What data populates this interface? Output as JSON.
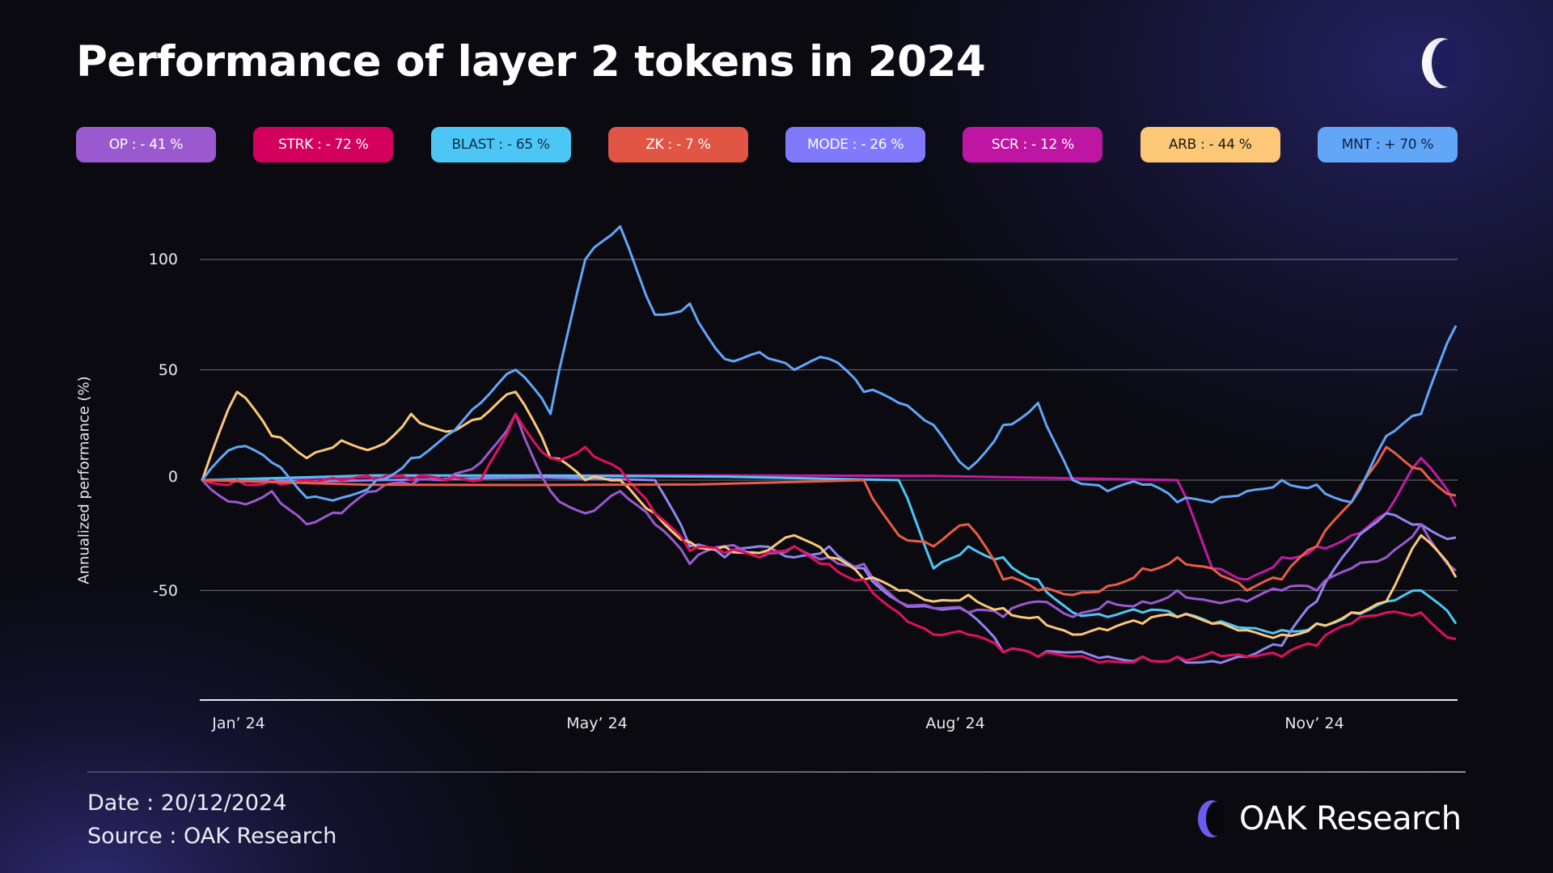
{
  "header": {
    "title": "Performance of layer 2 tokens in 2024",
    "logo_icon": "oak-ring-logo-icon"
  },
  "legend": [
    {
      "label": "OP : - 41 %",
      "token": "OP",
      "value": -41,
      "bg": "#9b59d0",
      "text": "#ffffff",
      "line": "#9b59d0"
    },
    {
      "label": "STRK : - 72 %",
      "token": "STRK",
      "value": -72,
      "bg": "#d4005e",
      "text": "#ffffff",
      "line": "#e0105f"
    },
    {
      "label": "BLAST : - 65 %",
      "token": "BLAST",
      "value": -65,
      "bg": "#4cc7f5",
      "text": "#0f2a40",
      "line": "#4cc7f5"
    },
    {
      "label": "ZK : - 7 %",
      "token": "ZK",
      "value": -7,
      "bg": "#e05544",
      "text": "#ffffff",
      "line": "#ea5c45"
    },
    {
      "label": "MODE : - 26 %",
      "token": "MODE",
      "value": -26,
      "bg": "#8179fb",
      "text": "#ffffff",
      "line": "#8f86f0"
    },
    {
      "label": "SCR : - 12 %",
      "token": "SCR",
      "value": -12,
      "bg": "#bf15a3",
      "text": "#ffffff",
      "line": "#c21aa6"
    },
    {
      "label": "ARB : - 44 %",
      "token": "ARB",
      "value": -44,
      "bg": "#fcc878",
      "text": "#1e1a10",
      "line": "#fcc878"
    },
    {
      "label": "MNT : + 70 %",
      "token": "MNT",
      "value": 70,
      "bg": "#62a6f8",
      "text": "#0f2040",
      "line": "#62a6f8"
    }
  ],
  "chart_data": {
    "type": "line",
    "title": "Performance of layer 2 tokens in 2024",
    "xlabel": "",
    "ylabel": "Annualized performance (%)",
    "ylim": [
      -100,
      125
    ],
    "yticks": [
      100,
      50,
      0,
      -50
    ],
    "xticks": [
      "Jan' 24",
      "May' 24",
      "Aug' 24",
      "Nov' 24"
    ],
    "grid": true,
    "legend_position": "top",
    "x": [
      "Jan 1",
      "Jan 11",
      "Jan 21",
      "Jan 31",
      "Feb 10",
      "Feb 20",
      "Mar 1",
      "Mar 11",
      "Mar 21",
      "Mar 31",
      "Apr 10",
      "Apr 20",
      "Apr 30",
      "May 10",
      "May 20",
      "May 30",
      "Jun 9",
      "Jun 19",
      "Jun 29",
      "Jul 9",
      "Jul 19",
      "Jul 29",
      "Aug 8",
      "Aug 18",
      "Aug 28",
      "Sep 7",
      "Sep 17",
      "Sep 27",
      "Oct 7",
      "Oct 17",
      "Oct 27",
      "Nov 6",
      "Nov 16",
      "Nov 26",
      "Dec 6",
      "Dec 16",
      "Dec 20"
    ],
    "series": [
      {
        "name": "MNT",
        "values": [
          0,
          15,
          8,
          -8,
          -8,
          0,
          10,
          20,
          35,
          50,
          30,
          100,
          115,
          75,
          80,
          55,
          58,
          50,
          55,
          40,
          35,
          25,
          5,
          25,
          35,
          0,
          -5,
          -2,
          -10,
          -10,
          -5,
          0,
          -2,
          -10,
          20,
          30,
          70
        ]
      },
      {
        "name": "ARB",
        "values": [
          0,
          40,
          20,
          10,
          18,
          15,
          30,
          22,
          28,
          40,
          10,
          0,
          0,
          -15,
          -28,
          -30,
          -33,
          -25,
          -35,
          -45,
          -50,
          -55,
          -52,
          -58,
          -62,
          -70,
          -68,
          -65,
          -62,
          -65,
          -68,
          -70,
          -65,
          -60,
          -55,
          -25,
          -44
        ]
      },
      {
        "name": "OP",
        "values": [
          0,
          -10,
          -5,
          -20,
          -15,
          -5,
          -2,
          0,
          8,
          30,
          -5,
          -15,
          -5,
          -20,
          -38,
          -30,
          -35,
          -30,
          -35,
          -38,
          -55,
          -58,
          -60,
          -62,
          -55,
          -62,
          -55,
          -55,
          -50,
          -55,
          -55,
          -50,
          -50,
          -40,
          -35,
          -20,
          -41
        ]
      },
      {
        "name": "STRK",
        "values": [
          0,
          0,
          0,
          0,
          0,
          0,
          0,
          0,
          0,
          30,
          10,
          15,
          5,
          -15,
          -32,
          -33,
          -35,
          -30,
          -38,
          -45,
          -60,
          -70,
          -70,
          -78,
          -80,
          -80,
          -82,
          -80,
          -80,
          -78,
          -80,
          -80,
          -75,
          -65,
          -60,
          -60,
          -72
        ]
      },
      {
        "name": "BLAST",
        "values": [
          null,
          null,
          null,
          null,
          null,
          null,
          null,
          null,
          null,
          null,
          null,
          null,
          null,
          null,
          null,
          null,
          null,
          null,
          null,
          null,
          0,
          -40,
          -30,
          -35,
          -45,
          -60,
          -62,
          -60,
          -62,
          -65,
          -67,
          -68,
          -65,
          -60,
          -55,
          -50,
          -65
        ]
      },
      {
        "name": "ZK",
        "values": [
          null,
          null,
          null,
          null,
          null,
          null,
          null,
          null,
          null,
          null,
          null,
          null,
          null,
          null,
          null,
          null,
          null,
          null,
          null,
          0,
          -25,
          -30,
          -20,
          -45,
          -50,
          -52,
          -48,
          -40,
          -35,
          -40,
          -50,
          -45,
          -30,
          -10,
          15,
          5,
          -7
        ]
      },
      {
        "name": "MODE",
        "values": [
          null,
          null,
          null,
          null,
          null,
          null,
          null,
          null,
          null,
          null,
          null,
          null,
          null,
          0,
          -30,
          -35,
          -30,
          -35,
          -30,
          -40,
          -55,
          -58,
          -60,
          -78,
          -80,
          -78,
          -80,
          -80,
          -80,
          -82,
          -80,
          -75,
          -55,
          -30,
          -15,
          -20,
          -26
        ]
      },
      {
        "name": "SCR",
        "values": [
          null,
          null,
          null,
          null,
          null,
          null,
          null,
          null,
          null,
          null,
          null,
          null,
          null,
          null,
          null,
          null,
          null,
          null,
          null,
          null,
          null,
          null,
          null,
          null,
          null,
          null,
          null,
          null,
          0,
          -40,
          -45,
          -35,
          -30,
          -25,
          -15,
          10,
          -12
        ]
      }
    ]
  },
  "axes": {
    "y_label": "Annualized performance (%)",
    "y_ticks": [
      "100",
      "50",
      "0",
      "-50"
    ],
    "x_ticks": [
      "Jan’ 24",
      "May’ 24",
      "Aug’ 24",
      "Nov’ 24"
    ]
  },
  "footer": {
    "date": "Date : 20/12/2024",
    "source": "Source : OAK Research",
    "brand_bold": "OAK",
    "brand_rest": " Research",
    "brand_icon": "oak-ring-logo-icon"
  }
}
